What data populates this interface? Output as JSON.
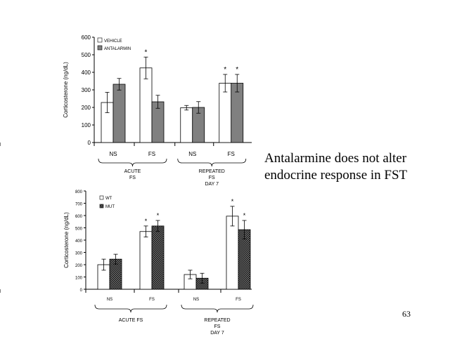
{
  "slide": {
    "caption": "Antalarmine does not alter endocrine response in FST",
    "page_number": "63"
  },
  "chart_data": [
    {
      "type": "bar",
      "ylabel": "Corticosterone (ng/dL)",
      "ylim": [
        0,
        600
      ],
      "yticks": [
        "0",
        "100",
        "200",
        "300",
        "400",
        "500",
        "600"
      ],
      "categories": [
        "NS",
        "FS",
        "NS",
        "FS"
      ],
      "groups": [
        {
          "label_lines": [
            "ACUTE",
            "FS"
          ]
        },
        {
          "label_lines": [
            "REPEATED",
            "FS",
            "DAY 7"
          ]
        }
      ],
      "legend_position": "top-left",
      "series": [
        {
          "name": "VEHICLE",
          "color": "#ffffff",
          "values": [
            228,
            425,
            198,
            338
          ],
          "errors": [
            58,
            62,
            13,
            50
          ],
          "star": [
            false,
            true,
            false,
            true
          ]
        },
        {
          "name": "ANTALARMIN",
          "color": "#808080",
          "values": [
            332,
            232,
            200,
            338
          ],
          "errors": [
            33,
            37,
            33,
            50
          ],
          "star": [
            false,
            false,
            false,
            true
          ]
        }
      ]
    },
    {
      "type": "bar",
      "ylabel": "Corticosterone (ng/dL)",
      "ylim": [
        0,
        800
      ],
      "yticks": [
        "0",
        "100",
        "200",
        "300",
        "400",
        "500",
        "600",
        "700",
        "800"
      ],
      "categories": [
        "NS",
        "FS",
        "NS",
        "FS"
      ],
      "groups": [
        {
          "label_lines": [
            "ACUTE FS"
          ]
        },
        {
          "label_lines": [
            "REPEATED",
            "FS",
            "DAY 7"
          ]
        }
      ],
      "legend_position": "top-left",
      "series": [
        {
          "name": "WT",
          "color": "#ffffff",
          "values": [
            200,
            470,
            120,
            595
          ],
          "errors": [
            45,
            45,
            35,
            80
          ],
          "star": [
            false,
            true,
            false,
            true
          ]
        },
        {
          "name": "MUT",
          "color": "#555555",
          "pattern": "checker",
          "values": [
            245,
            515,
            90,
            485
          ],
          "errors": [
            40,
            45,
            40,
            75
          ],
          "star": [
            false,
            true,
            false,
            true
          ]
        }
      ]
    }
  ]
}
